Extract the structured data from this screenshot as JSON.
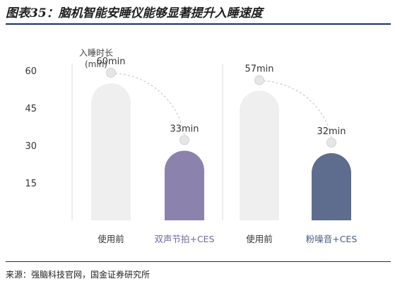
{
  "title": "图表35：脑机智能安睡仪能够显著提升入睡速度",
  "source": "来源：强脑科技官网，国金证券研究所",
  "chart_data": {
    "type": "bar",
    "ylabel": [
      "入睡时长",
      "(min)"
    ],
    "yticks": [
      15,
      30,
      45,
      60
    ],
    "ylim": [
      0,
      73
    ],
    "categories": [
      "使用前",
      "双声节拍+CES",
      "使用前",
      "粉噪音+CES"
    ],
    "values": [
      60,
      33,
      57,
      32
    ],
    "value_labels": [
      "60min",
      "33min",
      "57min",
      "32min"
    ],
    "colors": [
      "#efefef",
      "#8b83ae",
      "#efefef",
      "#5e6c8e"
    ],
    "category_label_colors": [
      "#333333",
      "#6e68a0",
      "#333333",
      "#4a5c82"
    ],
    "groups": 2,
    "grid": false
  }
}
